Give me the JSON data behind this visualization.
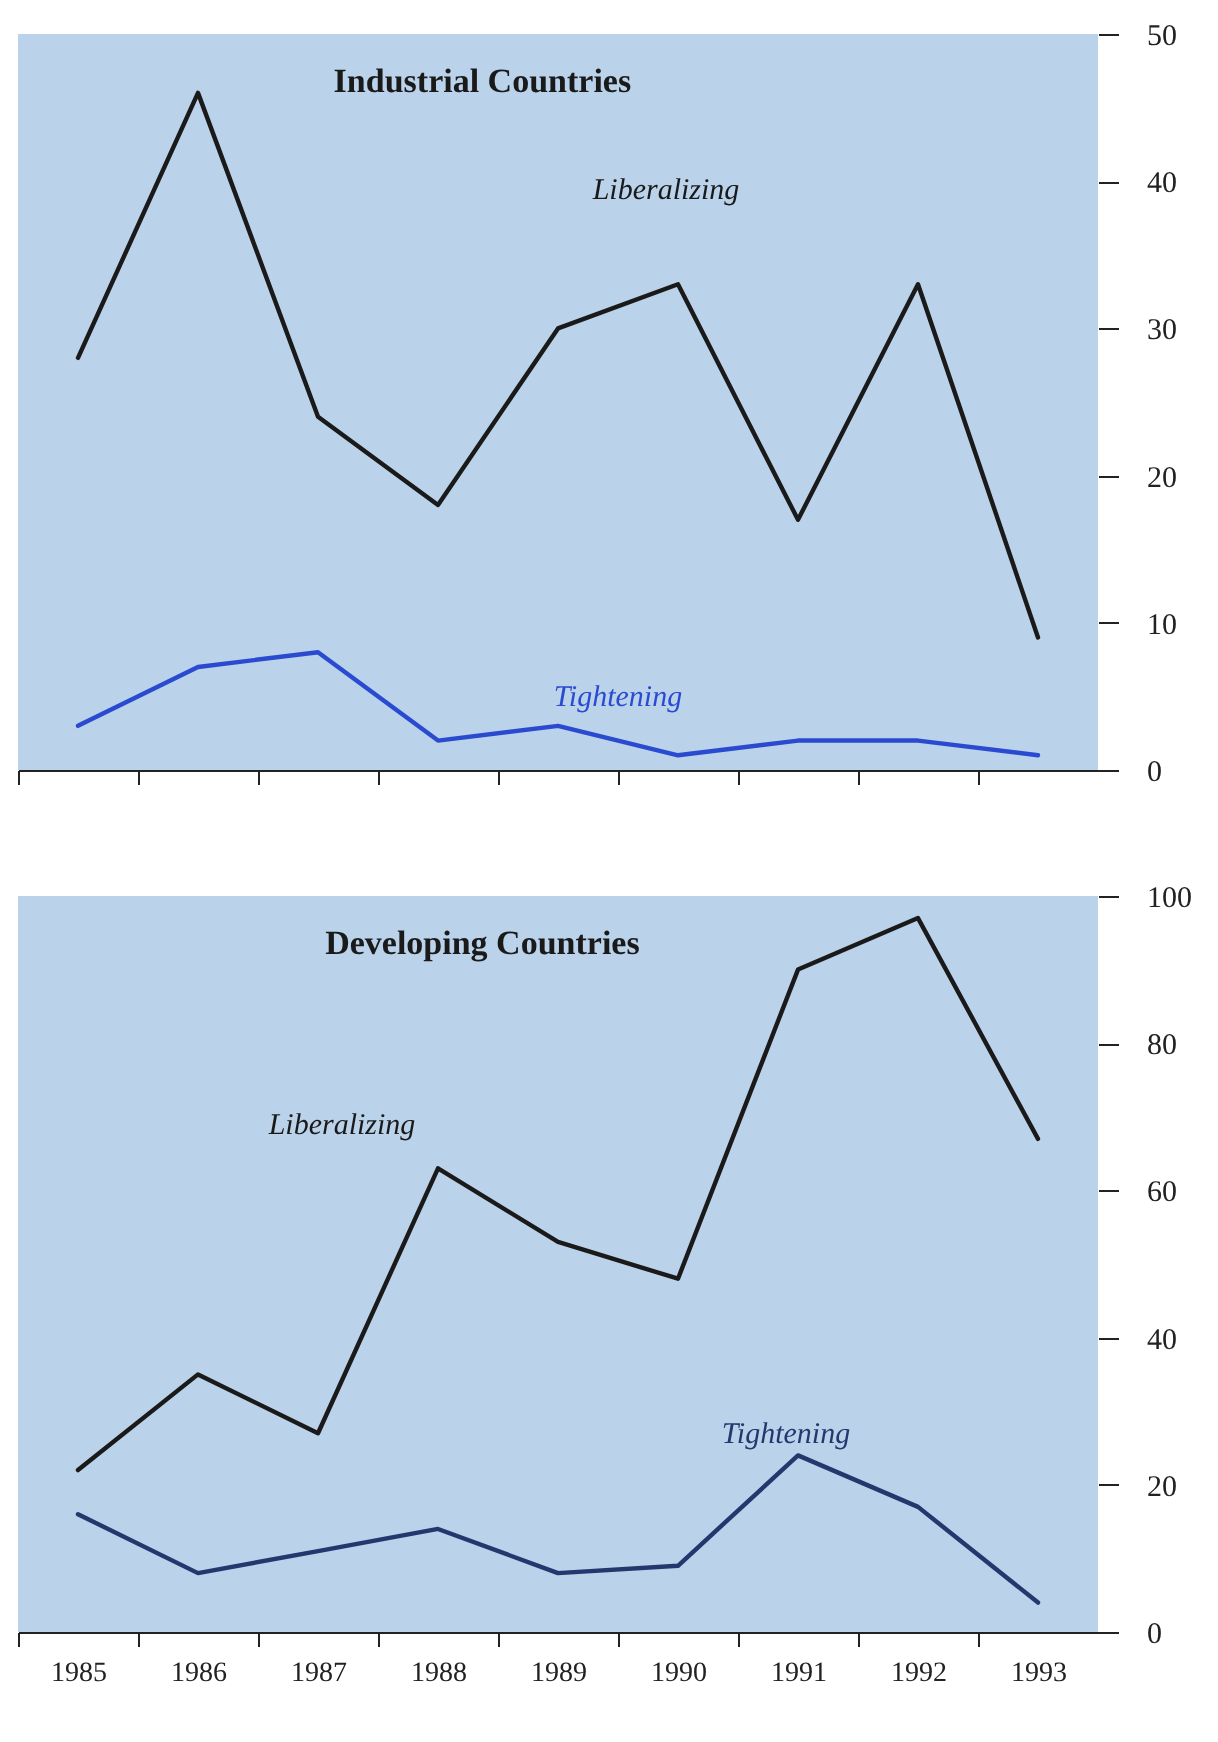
{
  "chart_data": [
    {
      "type": "line",
      "title": "Industrial Countries",
      "categories": [
        "1985",
        "1986",
        "1987",
        "1988",
        "1989",
        "1990",
        "1991",
        "1992",
        "1993"
      ],
      "ylim": [
        0,
        50
      ],
      "yticks": [
        0,
        10,
        20,
        30,
        40,
        50
      ],
      "tick_labels": "y",
      "grid": false,
      "legend": false,
      "series": [
        {
          "name": "Liberalizing",
          "color": "#1a1a1a",
          "values": [
            28,
            46,
            24,
            18,
            30,
            33,
            17,
            33,
            9
          ]
        },
        {
          "name": "Tightening",
          "color": "#2a4bd0",
          "values": [
            3,
            7,
            8,
            2,
            3,
            1,
            2,
            2,
            1
          ]
        }
      ]
    },
    {
      "type": "line",
      "title": "Developing Countries",
      "categories": [
        "1985",
        "1986",
        "1987",
        "1988",
        "1989",
        "1990",
        "1991",
        "1992",
        "1993"
      ],
      "ylim": [
        0,
        100
      ],
      "yticks": [
        0,
        20,
        40,
        60,
        80,
        100
      ],
      "grid": false,
      "legend": false,
      "series": [
        {
          "name": "Liberalizing",
          "color": "#1a1a1a",
          "values": [
            22,
            35,
            27,
            63,
            53,
            48,
            90,
            97,
            67
          ]
        },
        {
          "name": "Tightening",
          "color": "#26376e",
          "values": [
            16,
            8,
            11,
            14,
            8,
            9,
            24,
            17,
            4
          ]
        }
      ]
    }
  ]
}
